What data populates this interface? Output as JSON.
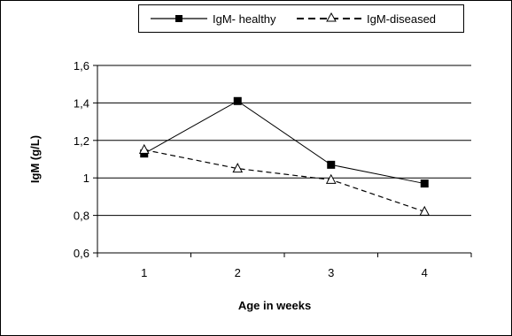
{
  "chart_data": {
    "type": "line",
    "categories": [
      "1",
      "2",
      "3",
      "4"
    ],
    "series": [
      {
        "name": "IgM- healthy",
        "values": [
          1.13,
          1.41,
          1.07,
          0.97
        ],
        "marker": "square",
        "line": "solid",
        "color": "#000000"
      },
      {
        "name": "IgM-diseased",
        "values": [
          1.15,
          1.05,
          0.99,
          0.82
        ],
        "marker": "triangle-open",
        "line": "dashed",
        "color": "#000000"
      }
    ],
    "xlabel": "Age in weeks",
    "ylabel": "IgM (g/L)",
    "ylim": [
      0.6,
      1.6
    ],
    "yticks": [
      "0,6",
      "0,8",
      "1",
      "1,2",
      "1,4",
      "1,6"
    ],
    "grid": "horizontal",
    "legend": "top"
  }
}
